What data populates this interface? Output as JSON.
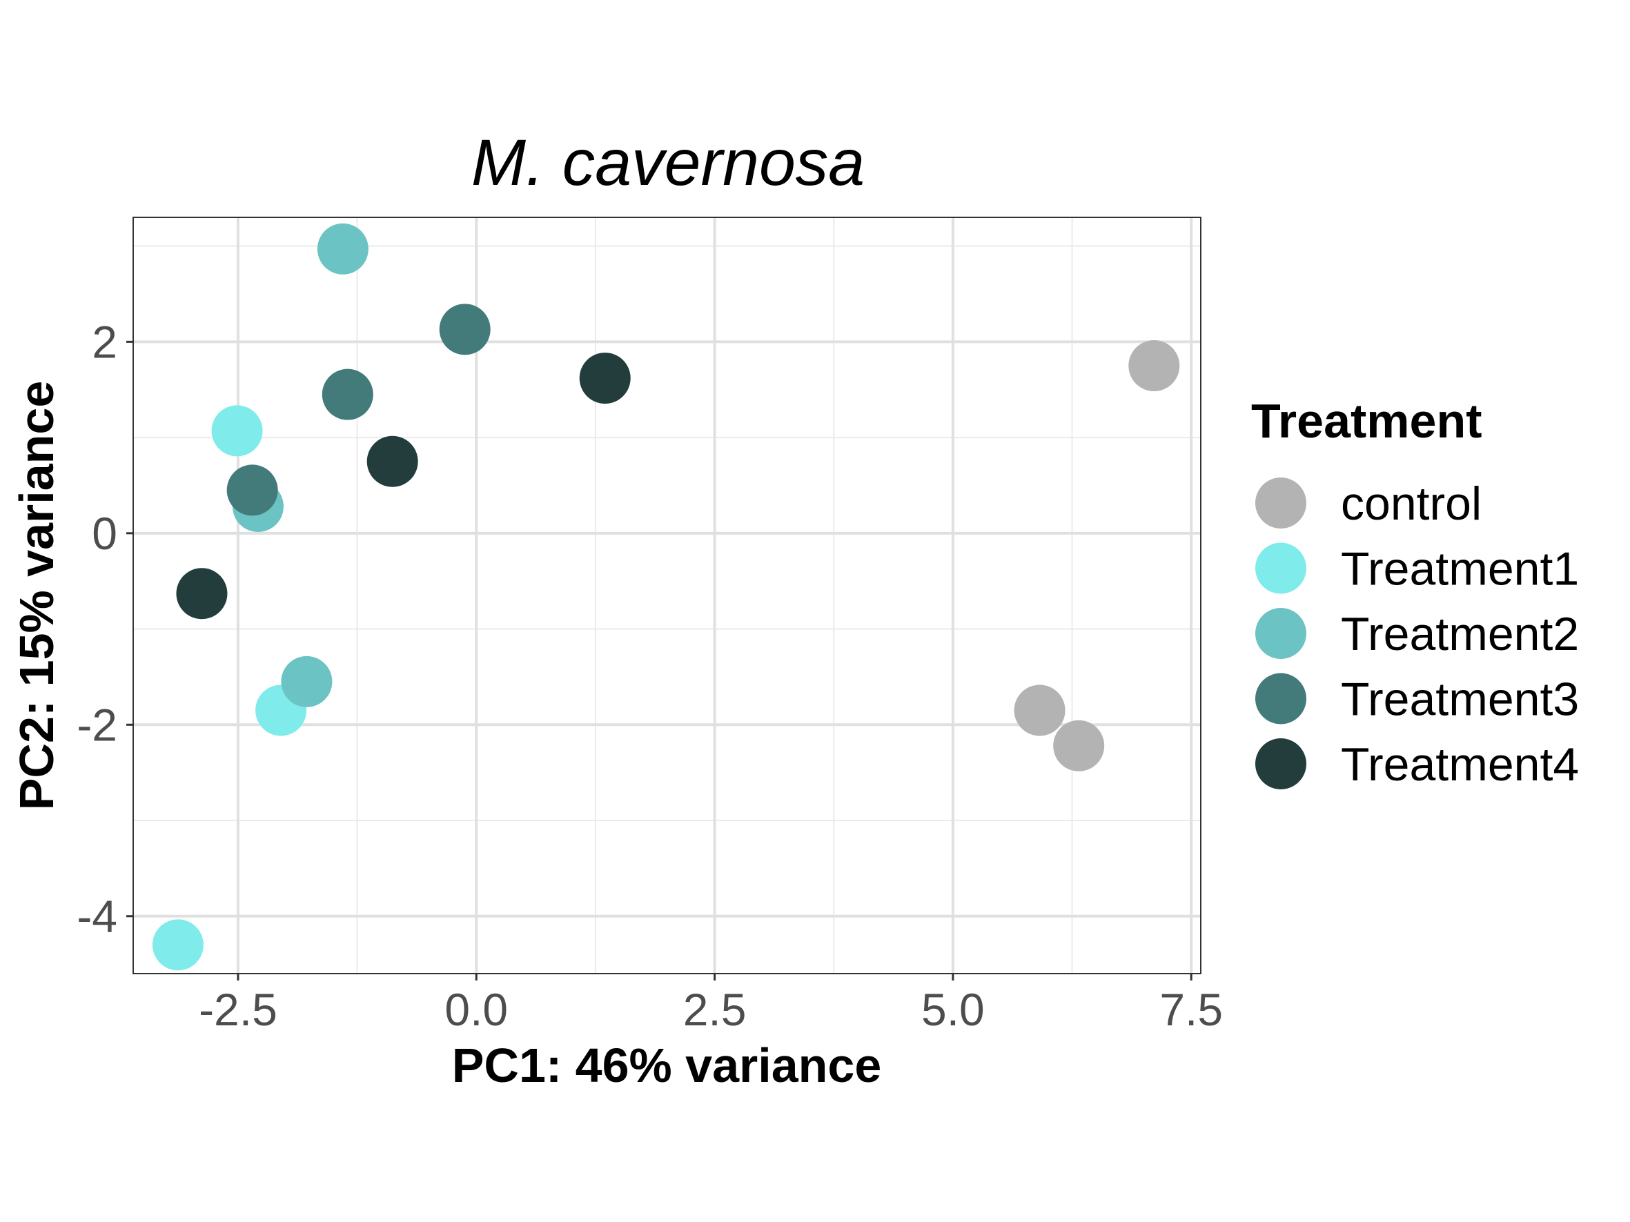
{
  "chart_data": {
    "type": "scatter",
    "title": "M. cavernosa",
    "xlabel": "PC1: 46% variance",
    "ylabel": "PC2: 15% variance",
    "xlim": [
      -3.6,
      7.6
    ],
    "ylim": [
      -4.6,
      3.3
    ],
    "x_ticks": [
      -2.5,
      0.0,
      2.5,
      5.0,
      7.5
    ],
    "x_tick_labels": [
      "-2.5",
      "0.0",
      "2.5",
      "5.0",
      "7.5"
    ],
    "y_ticks": [
      -4,
      -2,
      0,
      2
    ],
    "y_tick_labels": [
      "-4",
      "-2",
      "0",
      "2"
    ],
    "grid": true,
    "legend": {
      "title": "Treatment",
      "position": "right"
    },
    "series": [
      {
        "name": "control",
        "color": "#b3b3b3",
        "points": [
          {
            "x": 7.11,
            "y": 1.75
          },
          {
            "x": 5.91,
            "y": -1.85
          },
          {
            "x": 6.32,
            "y": -2.22
          }
        ]
      },
      {
        "name": "Treatment1",
        "color": "#80ebeb",
        "points": [
          {
            "x": -2.51,
            "y": 1.07
          },
          {
            "x": -2.05,
            "y": -1.85
          },
          {
            "x": -3.13,
            "y": -4.3
          }
        ]
      },
      {
        "name": "Treatment2",
        "color": "#6cc3c3",
        "points": [
          {
            "x": -1.4,
            "y": 2.97
          },
          {
            "x": -2.29,
            "y": 0.28
          },
          {
            "x": -1.78,
            "y": -1.55
          }
        ]
      },
      {
        "name": "Treatment3",
        "color": "#437a7a",
        "points": [
          {
            "x": -0.12,
            "y": 2.13
          },
          {
            "x": -1.35,
            "y": 1.45
          },
          {
            "x": -2.35,
            "y": 0.45
          }
        ]
      },
      {
        "name": "Treatment4",
        "color": "#233d3d",
        "points": [
          {
            "x": 1.35,
            "y": 1.62
          },
          {
            "x": -0.88,
            "y": 0.75
          },
          {
            "x": -2.88,
            "y": -0.63
          }
        ]
      }
    ]
  }
}
